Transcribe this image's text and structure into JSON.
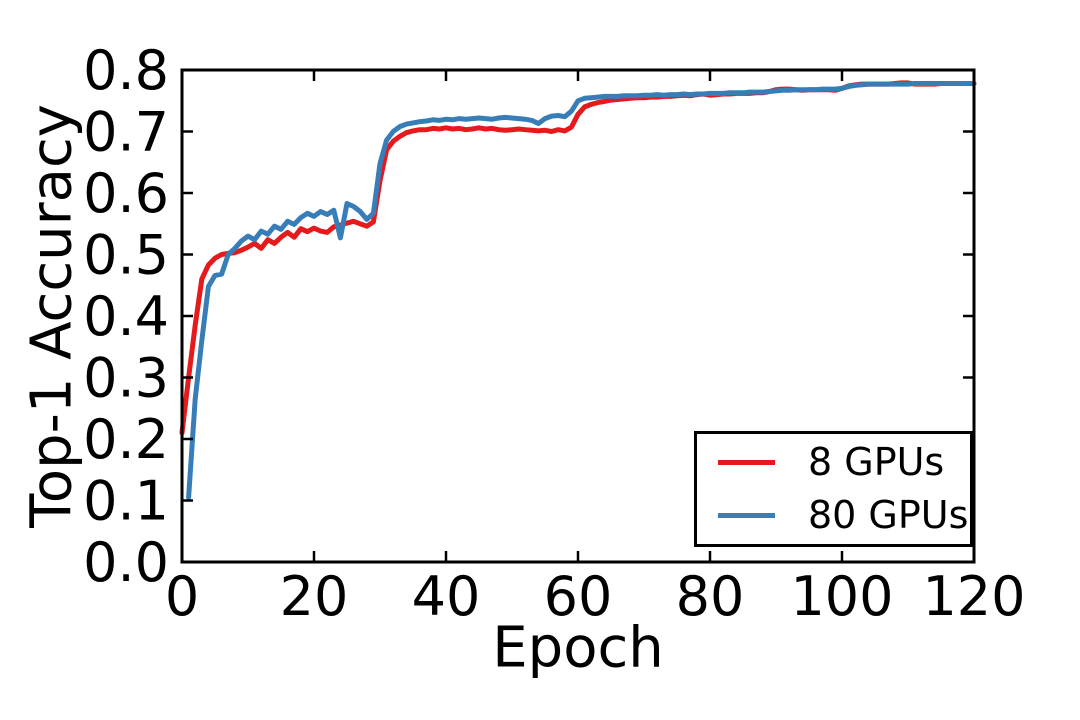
{
  "chart_data": {
    "type": "line",
    "title": "",
    "xlabel": "Epoch",
    "ylabel": "Top-1 Accuracy",
    "xlim": [
      0,
      120
    ],
    "ylim": [
      0.0,
      0.8
    ],
    "xticks": [
      0,
      20,
      40,
      60,
      80,
      100,
      120
    ],
    "xtick_labels": [
      "0",
      "20",
      "40",
      "60",
      "80",
      "100",
      "120"
    ],
    "yticks": [
      0.0,
      0.1,
      0.2,
      0.3,
      0.4,
      0.5,
      0.6,
      0.7,
      0.8
    ],
    "ytick_labels": [
      "0.0",
      "0.1",
      "0.2",
      "0.3",
      "0.4",
      "0.5",
      "0.6",
      "0.7",
      "0.8"
    ],
    "grid": false,
    "legend_position": "lower right",
    "axis_color": "#000000",
    "background_color": "#ffffff",
    "series": [
      {
        "name": "8 GPUs",
        "color": "#e41a1c",
        "points": [
          [
            0,
            0.21
          ],
          [
            1,
            0.3
          ],
          [
            2,
            0.385
          ],
          [
            3,
            0.46
          ],
          [
            4,
            0.483
          ],
          [
            5,
            0.494
          ],
          [
            6,
            0.5
          ],
          [
            7,
            0.502
          ],
          [
            8,
            0.503
          ],
          [
            9,
            0.507
          ],
          [
            10,
            0.512
          ],
          [
            11,
            0.518
          ],
          [
            12,
            0.51
          ],
          [
            13,
            0.524
          ],
          [
            14,
            0.518
          ],
          [
            15,
            0.528
          ],
          [
            16,
            0.536
          ],
          [
            17,
            0.528
          ],
          [
            18,
            0.542
          ],
          [
            19,
            0.537
          ],
          [
            20,
            0.543
          ],
          [
            21,
            0.538
          ],
          [
            22,
            0.536
          ],
          [
            23,
            0.545
          ],
          [
            24,
            0.548
          ],
          [
            25,
            0.551
          ],
          [
            26,
            0.554
          ],
          [
            27,
            0.55
          ],
          [
            28,
            0.546
          ],
          [
            29,
            0.553
          ],
          [
            30,
            0.62
          ],
          [
            31,
            0.67
          ],
          [
            32,
            0.684
          ],
          [
            33,
            0.692
          ],
          [
            34,
            0.698
          ],
          [
            35,
            0.701
          ],
          [
            36,
            0.703
          ],
          [
            37,
            0.703
          ],
          [
            38,
            0.705
          ],
          [
            39,
            0.704
          ],
          [
            40,
            0.706
          ],
          [
            41,
            0.704
          ],
          [
            42,
            0.705
          ],
          [
            43,
            0.703
          ],
          [
            44,
            0.704
          ],
          [
            45,
            0.706
          ],
          [
            46,
            0.704
          ],
          [
            47,
            0.705
          ],
          [
            48,
            0.703
          ],
          [
            49,
            0.702
          ],
          [
            50,
            0.703
          ],
          [
            51,
            0.704
          ],
          [
            52,
            0.703
          ],
          [
            53,
            0.702
          ],
          [
            54,
            0.701
          ],
          [
            55,
            0.702
          ],
          [
            56,
            0.7
          ],
          [
            57,
            0.703
          ],
          [
            58,
            0.701
          ],
          [
            59,
            0.707
          ],
          [
            60,
            0.728
          ],
          [
            61,
            0.74
          ],
          [
            62,
            0.744
          ],
          [
            63,
            0.747
          ],
          [
            64,
            0.749
          ],
          [
            65,
            0.751
          ],
          [
            66,
            0.752
          ],
          [
            67,
            0.753
          ],
          [
            68,
            0.754
          ],
          [
            69,
            0.755
          ],
          [
            70,
            0.755
          ],
          [
            71,
            0.756
          ],
          [
            72,
            0.756
          ],
          [
            73,
            0.757
          ],
          [
            74,
            0.757
          ],
          [
            75,
            0.758
          ],
          [
            76,
            0.759
          ],
          [
            77,
            0.758
          ],
          [
            78,
            0.76
          ],
          [
            79,
            0.761
          ],
          [
            80,
            0.759
          ],
          [
            81,
            0.76
          ],
          [
            82,
            0.761
          ],
          [
            83,
            0.761
          ],
          [
            84,
            0.762
          ],
          [
            85,
            0.762
          ],
          [
            86,
            0.762
          ],
          [
            87,
            0.763
          ],
          [
            88,
            0.763
          ],
          [
            89,
            0.765
          ],
          [
            90,
            0.768
          ],
          [
            91,
            0.769
          ],
          [
            92,
            0.769
          ],
          [
            93,
            0.768
          ],
          [
            94,
            0.767
          ],
          [
            95,
            0.768
          ],
          [
            96,
            0.768
          ],
          [
            97,
            0.768
          ],
          [
            98,
            0.768
          ],
          [
            99,
            0.767
          ],
          [
            100,
            0.77
          ],
          [
            101,
            0.774
          ],
          [
            102,
            0.776
          ],
          [
            103,
            0.777
          ],
          [
            104,
            0.777
          ],
          [
            105,
            0.777
          ],
          [
            106,
            0.777
          ],
          [
            107,
            0.777
          ],
          [
            108,
            0.778
          ],
          [
            109,
            0.779
          ],
          [
            110,
            0.779
          ],
          [
            111,
            0.777
          ],
          [
            112,
            0.777
          ],
          [
            113,
            0.777
          ],
          [
            114,
            0.777
          ],
          [
            115,
            0.778
          ],
          [
            116,
            0.778
          ],
          [
            117,
            0.778
          ],
          [
            118,
            0.778
          ],
          [
            119,
            0.778
          ],
          [
            120,
            0.778
          ]
        ]
      },
      {
        "name": "80 GPUs",
        "color": "#377eb8",
        "points": [
          [
            1,
            0.105
          ],
          [
            2,
            0.265
          ],
          [
            3,
            0.36
          ],
          [
            4,
            0.448
          ],
          [
            5,
            0.466
          ],
          [
            6,
            0.468
          ],
          [
            7,
            0.5
          ],
          [
            8,
            0.51
          ],
          [
            9,
            0.522
          ],
          [
            10,
            0.53
          ],
          [
            11,
            0.524
          ],
          [
            12,
            0.538
          ],
          [
            13,
            0.533
          ],
          [
            14,
            0.546
          ],
          [
            15,
            0.541
          ],
          [
            16,
            0.554
          ],
          [
            17,
            0.549
          ],
          [
            18,
            0.56
          ],
          [
            19,
            0.567
          ],
          [
            20,
            0.562
          ],
          [
            21,
            0.57
          ],
          [
            22,
            0.565
          ],
          [
            23,
            0.572
          ],
          [
            24,
            0.527
          ],
          [
            25,
            0.583
          ],
          [
            26,
            0.578
          ],
          [
            27,
            0.57
          ],
          [
            28,
            0.557
          ],
          [
            29,
            0.567
          ],
          [
            30,
            0.648
          ],
          [
            31,
            0.686
          ],
          [
            32,
            0.7
          ],
          [
            33,
            0.708
          ],
          [
            34,
            0.712
          ],
          [
            35,
            0.714
          ],
          [
            36,
            0.716
          ],
          [
            37,
            0.717
          ],
          [
            38,
            0.719
          ],
          [
            39,
            0.718
          ],
          [
            40,
            0.72
          ],
          [
            41,
            0.719
          ],
          [
            42,
            0.721
          ],
          [
            43,
            0.72
          ],
          [
            44,
            0.721
          ],
          [
            45,
            0.722
          ],
          [
            46,
            0.721
          ],
          [
            47,
            0.72
          ],
          [
            48,
            0.722
          ],
          [
            49,
            0.723
          ],
          [
            50,
            0.722
          ],
          [
            51,
            0.721
          ],
          [
            52,
            0.72
          ],
          [
            53,
            0.718
          ],
          [
            54,
            0.713
          ],
          [
            55,
            0.721
          ],
          [
            56,
            0.725
          ],
          [
            57,
            0.726
          ],
          [
            58,
            0.724
          ],
          [
            59,
            0.733
          ],
          [
            60,
            0.75
          ],
          [
            61,
            0.754
          ],
          [
            62,
            0.755
          ],
          [
            63,
            0.756
          ],
          [
            64,
            0.757
          ],
          [
            65,
            0.757
          ],
          [
            66,
            0.757
          ],
          [
            67,
            0.758
          ],
          [
            68,
            0.758
          ],
          [
            69,
            0.758
          ],
          [
            70,
            0.759
          ],
          [
            71,
            0.759
          ],
          [
            72,
            0.76
          ],
          [
            73,
            0.759
          ],
          [
            74,
            0.76
          ],
          [
            75,
            0.76
          ],
          [
            76,
            0.761
          ],
          [
            77,
            0.76
          ],
          [
            78,
            0.761
          ],
          [
            79,
            0.761
          ],
          [
            80,
            0.762
          ],
          [
            81,
            0.762
          ],
          [
            82,
            0.762
          ],
          [
            83,
            0.763
          ],
          [
            84,
            0.763
          ],
          [
            85,
            0.763
          ],
          [
            86,
            0.764
          ],
          [
            87,
            0.764
          ],
          [
            88,
            0.764
          ],
          [
            89,
            0.765
          ],
          [
            90,
            0.766
          ],
          [
            91,
            0.767
          ],
          [
            92,
            0.767
          ],
          [
            93,
            0.768
          ],
          [
            94,
            0.768
          ],
          [
            95,
            0.768
          ],
          [
            96,
            0.768
          ],
          [
            97,
            0.769
          ],
          [
            98,
            0.769
          ],
          [
            99,
            0.769
          ],
          [
            100,
            0.77
          ],
          [
            101,
            0.773
          ],
          [
            102,
            0.775
          ],
          [
            103,
            0.776
          ],
          [
            104,
            0.777
          ],
          [
            105,
            0.777
          ],
          [
            106,
            0.777
          ],
          [
            107,
            0.777
          ],
          [
            108,
            0.777
          ],
          [
            109,
            0.777
          ],
          [
            110,
            0.777
          ],
          [
            111,
            0.778
          ],
          [
            112,
            0.778
          ],
          [
            113,
            0.778
          ],
          [
            114,
            0.778
          ],
          [
            115,
            0.778
          ],
          [
            116,
            0.778
          ],
          [
            117,
            0.778
          ],
          [
            118,
            0.778
          ],
          [
            119,
            0.778
          ],
          [
            120,
            0.778
          ]
        ]
      }
    ]
  }
}
